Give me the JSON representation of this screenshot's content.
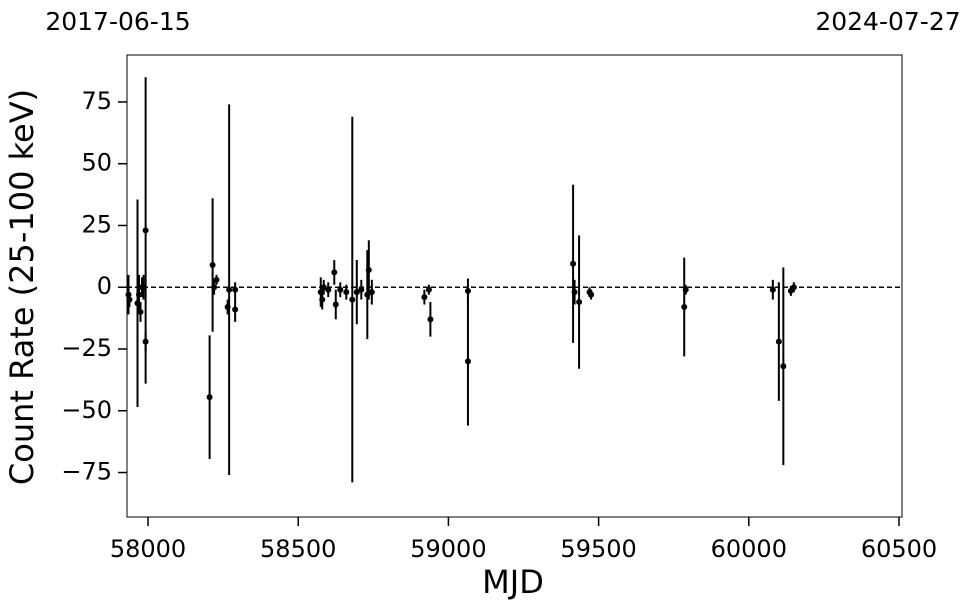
{
  "chart_data": {
    "type": "scatter",
    "x_label": "MJD",
    "y_label": "Count Rate (25-100 keV)",
    "top_axis_labels": [
      "2017-06-15",
      "2024-07-27"
    ],
    "color": "#000000",
    "hline": 0,
    "xlim": [
      57930,
      60510
    ],
    "ylim": [
      -93,
      94
    ],
    "xticks": [
      58000,
      58500,
      59000,
      59500,
      60000,
      60500
    ],
    "yticks": [
      {
        "value": -75,
        "label": "−75"
      },
      {
        "value": -50,
        "label": "−50"
      },
      {
        "value": -25,
        "label": "−25"
      },
      0,
      25,
      50,
      75
    ],
    "x": [
      57935,
      57938,
      57965,
      57970,
      57975,
      57980,
      57985,
      57992,
      57992,
      58205,
      58215,
      58220,
      58228,
      58265,
      58270,
      58290,
      58290,
      58575,
      58580,
      58585,
      58600,
      58620,
      58625,
      58640,
      58660,
      58680,
      58695,
      58710,
      58730,
      58735,
      58745,
      58920,
      58935,
      58940,
      59065,
      59065,
      59415,
      59420,
      59435,
      59470,
      59475,
      59785,
      59790,
      60080,
      60100,
      60115,
      60140,
      60150
    ],
    "values": [
      -3,
      -5,
      -6.5,
      -3,
      -10,
      0,
      0,
      23,
      -22,
      -44.5,
      9,
      0,
      3,
      -8,
      -1,
      -9,
      -1,
      -2,
      -5,
      0,
      -1,
      6,
      -7,
      -1,
      -2,
      -5,
      -2,
      -1,
      -3,
      7,
      -2,
      -4,
      -1,
      -13,
      -1.5,
      -30,
      9.5,
      -2,
      -6,
      -2,
      -3,
      -8,
      -1,
      -1,
      -22,
      -32,
      -1.5,
      0
    ],
    "errors": [
      8,
      3,
      42,
      8,
      4,
      4,
      5,
      62,
      4,
      25,
      27,
      3,
      2,
      3,
      75,
      5,
      3,
      6,
      4,
      3,
      3,
      5,
      6,
      3,
      3,
      74,
      13,
      4,
      18,
      12,
      5,
      3,
      2,
      7,
      5,
      26,
      32,
      5,
      27,
      2,
      2,
      20,
      2,
      4,
      24,
      40,
      2,
      2
    ]
  }
}
